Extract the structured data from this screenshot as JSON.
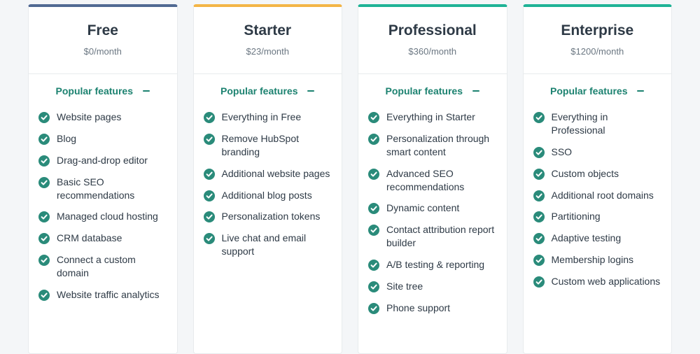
{
  "colors": {
    "page_bg": "#f4f6f8",
    "card_bg": "#ffffff",
    "card_border": "#e8ebed",
    "title_text": "#2e3a46",
    "muted_text": "#6b7782",
    "feature_text": "#2e3a46",
    "check_fill": "#2a8b7a",
    "features_label": "#1c8270"
  },
  "features_label": "Popular features",
  "tiers": [
    {
      "name": "Free",
      "price": "$0/month",
      "accent": "#516a93",
      "features": [
        "Website pages",
        "Blog",
        "Drag-and-drop editor",
        "Basic SEO recommendations",
        "Managed cloud hosting",
        "CRM database",
        "Connect a custom domain",
        "Website traffic analytics"
      ]
    },
    {
      "name": "Starter",
      "price": "$23/month",
      "accent": "#f3b547",
      "features": [
        "Everything in Free",
        "Remove HubSpot branding",
        "Additional website pages",
        "Additional blog posts",
        "Personalization tokens",
        "Live chat and email support"
      ]
    },
    {
      "name": "Professional",
      "price": "$360/month",
      "accent": "#1fb396",
      "features": [
        "Everything in Starter",
        "Personalization through smart content",
        "Advanced SEO recommendations",
        "Dynamic content",
        "Contact attribution report builder",
        "A/B testing & reporting",
        "Site tree",
        "Phone support"
      ]
    },
    {
      "name": "Enterprise",
      "price": "$1200/month",
      "accent": "#1fb396",
      "features": [
        "Everything in Professional",
        "SSO",
        "Custom objects",
        "Additional root domains",
        "Partitioning",
        "Adaptive testing",
        "Membership logins",
        "Custom web applications"
      ]
    }
  ]
}
